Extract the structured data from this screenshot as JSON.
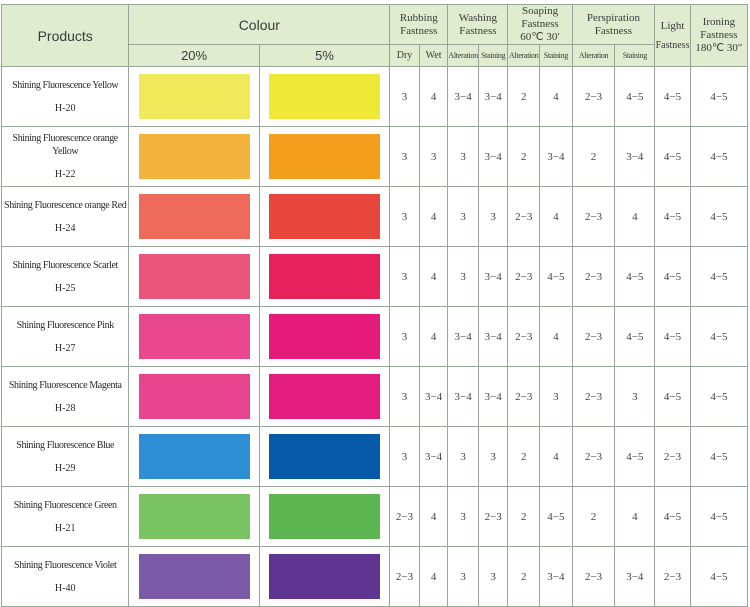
{
  "headers": {
    "products": "Products",
    "colour": "Colour",
    "pct20": "20%",
    "pct5": "5%",
    "rubbing": [
      "Rubbing",
      "Fastness"
    ],
    "washing": [
      "Washing",
      "Fastness"
    ],
    "soaping": [
      "Soaping",
      "Fastness",
      "60℃  30′"
    ],
    "perspiration": [
      "Perspiration",
      "Fastness"
    ],
    "light": [
      "Light",
      "Fastness"
    ],
    "ironing": [
      "Ironing",
      "Fastness",
      "180℃ 30″"
    ],
    "dry": "Dry",
    "wet": "Wet",
    "alteration": "Alteration",
    "staining": "Staining"
  },
  "rows": [
    {
      "name": "Shining Fluorescence Yellow",
      "code": "H-20",
      "c20": "#f0ea5a",
      "c5": "#f0e836",
      "v": [
        "3",
        "4",
        "3−4",
        "3−4",
        "2",
        "4",
        "2−3",
        "4−5",
        "4−5",
        "4−5"
      ]
    },
    {
      "name": "Shining Fluorescence orange Yellow",
      "code": "H-22",
      "c20": "#f4b33c",
      "c5": "#f39e1c",
      "v": [
        "3",
        "3",
        "3",
        "3−4",
        "2",
        "3−4",
        "2",
        "3−4",
        "4−5",
        "4−5"
      ]
    },
    {
      "name": "Shining Fluorescence orange Red",
      "code": "H-24",
      "c20": "#ee6b5c",
      "c5": "#e8453d",
      "v": [
        "3",
        "4",
        "3",
        "3",
        "2−3",
        "4",
        "2−3",
        "4",
        "4−5",
        "4−5"
      ]
    },
    {
      "name": "Shining Fluorescence Scarlet",
      "code": "H-25",
      "c20": "#ea557b",
      "c5": "#e6215b",
      "v": [
        "3",
        "4",
        "3",
        "3−4",
        "2−3",
        "4−5",
        "2−3",
        "4−5",
        "4−5",
        "4−5"
      ]
    },
    {
      "name": "Shining Fluorescence Pink",
      "code": "H-27",
      "c20": "#e9478e",
      "c5": "#e41b7b",
      "v": [
        "3",
        "4",
        "3−4",
        "3−4",
        "2−3",
        "4",
        "2−3",
        "4−5",
        "4−5",
        "4−5"
      ]
    },
    {
      "name": "Shining Fluorescence Magenta",
      "code": "H-28",
      "c20": "#e7468f",
      "c5": "#e31c80",
      "v": [
        "3",
        "3−4",
        "3−4",
        "3−4",
        "2−3",
        "3",
        "2−3",
        "3",
        "4−5",
        "4−5"
      ]
    },
    {
      "name": "Shining Fluorescence Blue",
      "code": "H-29",
      "c20": "#2f8fd4",
      "c5": "#065aa8",
      "v": [
        "3",
        "3−4",
        "3",
        "3",
        "2",
        "4",
        "2−3",
        "4−5",
        "2−3",
        "4−5"
      ]
    },
    {
      "name": "Shining Fluorescence Green",
      "code": "H-21",
      "c20": "#79c363",
      "c5": "#5cb550",
      "v": [
        "2−3",
        "4",
        "3",
        "2−3",
        "2",
        "4−5",
        "2",
        "4",
        "4−5",
        "4−5"
      ]
    },
    {
      "name": "Shining Fluorescence Violet",
      "code": "H-40",
      "c20": "#7b5aa7",
      "c5": "#5e3590",
      "v": [
        "2−3",
        "4",
        "3",
        "3",
        "2",
        "3−4",
        "2−3",
        "3−4",
        "2−3",
        "4−5"
      ]
    }
  ],
  "colors": {
    "header_bg": "#dfeccf",
    "border": "#9aa59a"
  }
}
